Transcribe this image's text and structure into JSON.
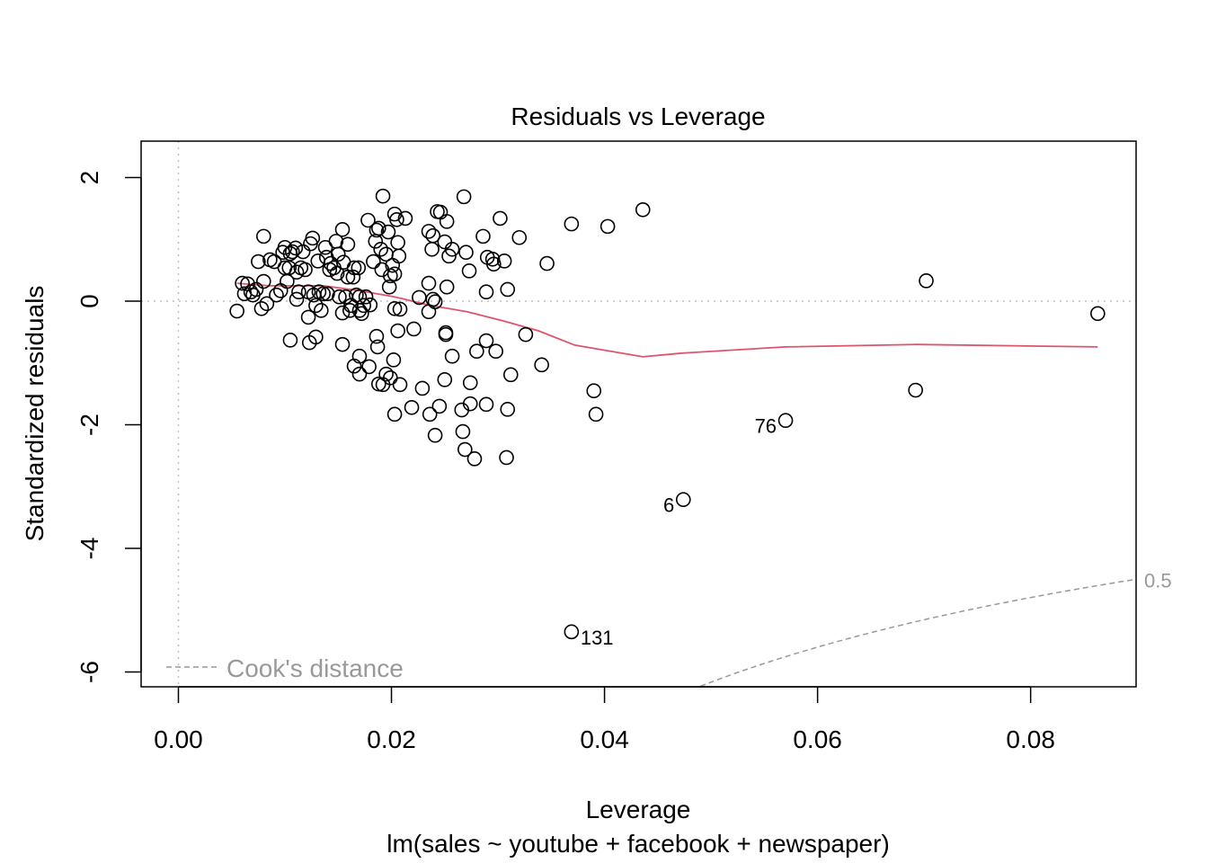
{
  "chart_data": {
    "type": "scatter",
    "title": "Residuals vs Leverage",
    "xlabel": "Leverage",
    "ylabel": "Standardized residuals",
    "subtitle": "lm(sales ~ youtube + facebook + newspaper)",
    "xlim": [
      -0.0035,
      0.0899
    ],
    "ylim": [
      -6.24,
      2.59
    ],
    "x_ticks": [
      "0.00",
      "0.02",
      "0.04",
      "0.06",
      "0.08"
    ],
    "x_tick_values": [
      0,
      0.02,
      0.04,
      0.06,
      0.08
    ],
    "y_ticks": [
      "-6",
      "-4",
      "-2",
      "0",
      "2"
    ],
    "y_tick_values": [
      -6,
      -4,
      -2,
      0,
      2
    ],
    "grid": false,
    "reference_lines": {
      "h": 0,
      "v": 0
    },
    "cooks_contour": {
      "level": 0.5,
      "label": "0.5",
      "n_params": 4
    },
    "legend": {
      "label": "Cook's distance",
      "position": "bottom-left"
    },
    "colors": {
      "points": "#000000",
      "smoother": "#df536b",
      "cooks": "#999999",
      "reference": "#bebebe"
    },
    "labeled_points": [
      {
        "label": "131",
        "x": 0.0369,
        "y": -5.35,
        "side": "right"
      },
      {
        "label": "6",
        "x": 0.0474,
        "y": -3.21,
        "side": "left"
      },
      {
        "label": "76",
        "x": 0.057,
        "y": -1.93,
        "side": "left"
      }
    ],
    "smoother": {
      "x": [
        0.0055,
        0.0085,
        0.0136,
        0.017,
        0.0203,
        0.0237,
        0.0271,
        0.0305,
        0.0338,
        0.0372,
        0.0436,
        0.0473,
        0.057,
        0.0693,
        0.0863
      ],
      "y": [
        0.29,
        0.25,
        0.25,
        0.17,
        0.07,
        -0.07,
        -0.17,
        -0.32,
        -0.48,
        -0.71,
        -0.9,
        -0.84,
        -0.74,
        -0.7,
        -0.74
      ]
    },
    "points": [
      [
        0.0055,
        -0.16
      ],
      [
        0.006,
        0.29
      ],
      [
        0.0062,
        0.12
      ],
      [
        0.0065,
        0.28
      ],
      [
        0.0068,
        0.15
      ],
      [
        0.007,
        0.1
      ],
      [
        0.0073,
        0.19
      ],
      [
        0.0075,
        0.64
      ],
      [
        0.0078,
        -0.12
      ],
      [
        0.008,
        1.05
      ],
      [
        0.008,
        0.32
      ],
      [
        0.0083,
        -0.04
      ],
      [
        0.0086,
        0.67
      ],
      [
        0.009,
        0.64
      ],
      [
        0.0092,
        0.1
      ],
      [
        0.0096,
        0.17
      ],
      [
        0.0098,
        0.79
      ],
      [
        0.01,
        0.87
      ],
      [
        0.01,
        0.54
      ],
      [
        0.0102,
        0.32
      ],
      [
        0.0104,
        0.54
      ],
      [
        0.0105,
        0.77
      ],
      [
        0.0107,
        0.8
      ],
      [
        0.011,
        0.86
      ],
      [
        0.0111,
        0.03
      ],
      [
        0.0111,
        0.47
      ],
      [
        0.0113,
        0.15
      ],
      [
        0.0115,
        0.54
      ],
      [
        0.0117,
        0.8
      ],
      [
        0.0119,
        0.51
      ],
      [
        0.0122,
        0.15
      ],
      [
        0.0122,
        -0.26
      ],
      [
        0.0124,
        0.93
      ],
      [
        0.0126,
        1.02
      ],
      [
        0.0127,
        0.1
      ],
      [
        0.0129,
        -0.07
      ],
      [
        0.0131,
        0.65
      ],
      [
        0.0132,
        0.15
      ],
      [
        0.0134,
        -0.15
      ],
      [
        0.0136,
        0.12
      ],
      [
        0.0138,
        0.87
      ],
      [
        0.0139,
        0.71
      ],
      [
        0.014,
        0.12
      ],
      [
        0.0142,
        0.51
      ],
      [
        0.0143,
        0.61
      ],
      [
        0.0146,
        0.54
      ],
      [
        0.0148,
        0.97
      ],
      [
        0.0149,
        0.45
      ],
      [
        0.015,
        0.76
      ],
      [
        0.0151,
        0.07
      ],
      [
        0.0154,
        -0.19
      ],
      [
        0.0154,
        1.16
      ],
      [
        0.0155,
        0.63
      ],
      [
        0.0157,
        0.07
      ],
      [
        0.0159,
        0.39
      ],
      [
        0.0159,
        0.92
      ],
      [
        0.0161,
        -0.15
      ],
      [
        0.0162,
        -0.07
      ],
      [
        0.0164,
        0.39
      ],
      [
        0.0165,
        0.54
      ],
      [
        0.0167,
        0.1
      ],
      [
        0.0169,
        0.54
      ],
      [
        0.017,
        0.07
      ],
      [
        0.017,
        -0.15
      ],
      [
        0.0172,
        -0.2
      ],
      [
        0.0174,
        -0.07
      ],
      [
        0.0176,
        0.07
      ],
      [
        0.0178,
        1.31
      ],
      [
        0.018,
        -0.06
      ],
      [
        0.0183,
        0.64
      ],
      [
        0.0185,
        0.97
      ],
      [
        0.0186,
        1.15
      ],
      [
        0.0188,
        1.18
      ],
      [
        0.019,
        0.84
      ],
      [
        0.0191,
        0.51
      ],
      [
        0.0192,
        1.7
      ],
      [
        0.0195,
        0.76
      ],
      [
        0.0197,
        1.12
      ],
      [
        0.0198,
        0.23
      ],
      [
        0.0199,
        0.41
      ],
      [
        0.0201,
        0.58
      ],
      [
        0.0203,
        0.44
      ],
      [
        0.0203,
        1.41
      ],
      [
        0.0205,
        1.32
      ],
      [
        0.0206,
        0.95
      ],
      [
        0.0207,
        0.73
      ],
      [
        0.0208,
        -0.13
      ],
      [
        0.0213,
        1.34
      ],
      [
        0.0203,
        -0.12
      ],
      [
        0.0105,
        -0.63
      ],
      [
        0.0123,
        -0.67
      ],
      [
        0.0129,
        -0.58
      ],
      [
        0.0154,
        -0.7
      ],
      [
        0.0165,
        -1.05
      ],
      [
        0.017,
        -0.89
      ],
      [
        0.017,
        -1.18
      ],
      [
        0.0179,
        -1.06
      ],
      [
        0.0186,
        -0.57
      ],
      [
        0.0187,
        -0.74
      ],
      [
        0.0188,
        -1.34
      ],
      [
        0.0192,
        -1.35
      ],
      [
        0.0195,
        -1.18
      ],
      [
        0.0199,
        -1.24
      ],
      [
        0.0202,
        -0.95
      ],
      [
        0.0203,
        -1.83
      ],
      [
        0.0206,
        -0.48
      ],
      [
        0.0208,
        -1.35
      ],
      [
        0.0219,
        -1.72
      ],
      [
        0.0221,
        -0.45
      ],
      [
        0.0226,
        0.06
      ],
      [
        0.0229,
        -1.41
      ],
      [
        0.0235,
        1.13
      ],
      [
        0.0235,
        0.29
      ],
      [
        0.0235,
        -0.17
      ],
      [
        0.0236,
        -1.83
      ],
      [
        0.0239,
        1.06
      ],
      [
        0.0238,
        0.84
      ],
      [
        0.0239,
        0.03
      ],
      [
        0.0241,
        -0.01
      ],
      [
        0.0243,
        1.45
      ],
      [
        0.0245,
        -1.7
      ],
      [
        0.0246,
        1.44
      ],
      [
        0.025,
        0.96
      ],
      [
        0.025,
        -1.27
      ],
      [
        0.0251,
        -0.54
      ],
      [
        0.0251,
        -0.51
      ],
      [
        0.0252,
        0.23
      ],
      [
        0.0252,
        1.29
      ],
      [
        0.0254,
        0.73
      ],
      [
        0.0257,
        0.84
      ],
      [
        0.0257,
        -0.89
      ],
      [
        0.0241,
        -2.17
      ],
      [
        0.0266,
        -1.76
      ],
      [
        0.0267,
        -2.11
      ],
      [
        0.0268,
        1.69
      ],
      [
        0.0269,
        -2.4
      ],
      [
        0.027,
        0.79
      ],
      [
        0.0273,
        0.49
      ],
      [
        0.0274,
        -1.32
      ],
      [
        0.0274,
        -1.66
      ],
      [
        0.0278,
        -2.55
      ],
      [
        0.028,
        -0.81
      ],
      [
        0.0286,
        1.05
      ],
      [
        0.0289,
        0.15
      ],
      [
        0.0289,
        -1.67
      ],
      [
        0.0289,
        -0.64
      ],
      [
        0.029,
        0.71
      ],
      [
        0.0295,
        0.68
      ],
      [
        0.0296,
        0.6
      ],
      [
        0.0298,
        -0.81
      ],
      [
        0.0302,
        1.34
      ],
      [
        0.0306,
        0.65
      ],
      [
        0.0308,
        -2.53
      ],
      [
        0.0309,
        0.19
      ],
      [
        0.0309,
        -1.75
      ],
      [
        0.0312,
        -1.19
      ],
      [
        0.032,
        1.03
      ],
      [
        0.0326,
        -0.54
      ],
      [
        0.0341,
        -1.03
      ],
      [
        0.0346,
        0.61
      ],
      [
        0.0369,
        1.25
      ],
      [
        0.039,
        -1.45
      ],
      [
        0.0392,
        -1.83
      ],
      [
        0.0403,
        1.21
      ],
      [
        0.0436,
        1.48
      ],
      [
        0.0474,
        -3.21
      ],
      [
        0.0369,
        -5.35
      ],
      [
        0.057,
        -1.93
      ],
      [
        0.0692,
        -1.44
      ],
      [
        0.0702,
        0.33
      ],
      [
        0.0863,
        -0.2
      ]
    ]
  }
}
